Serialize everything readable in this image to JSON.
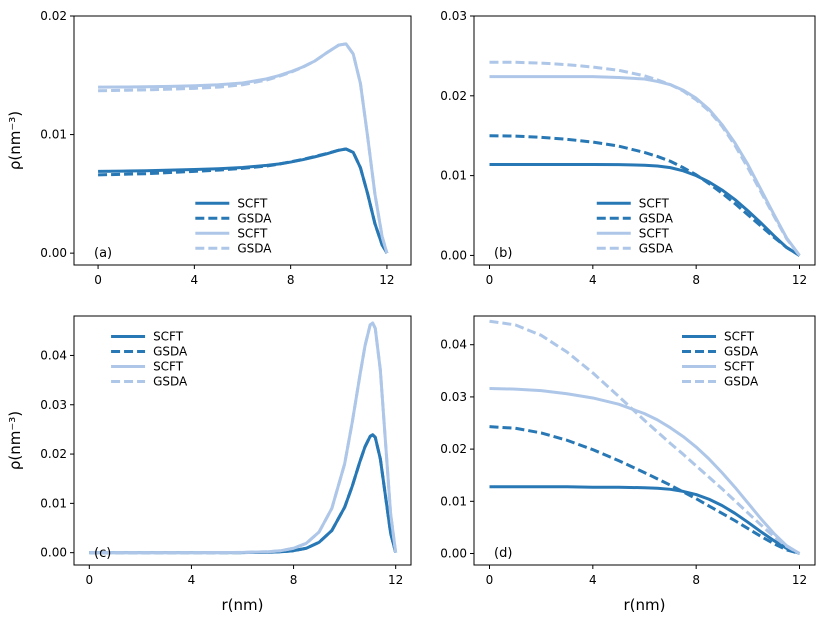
{
  "colors": {
    "dark": "#2878b5",
    "light": "#aec7e8"
  },
  "chart_data": [
    {
      "type": "line",
      "panel_label": "(a)",
      "xlabel": "",
      "ylabel": "ρ(nm⁻³)",
      "xlim": [
        -1,
        13
      ],
      "ylim": [
        -0.001,
        0.02
      ],
      "xticks": [
        0,
        4,
        8,
        12
      ],
      "xticklabels": [
        "0",
        "4",
        "8",
        "12"
      ],
      "yticks": [
        0,
        0.01,
        0.02
      ],
      "yticklabels": [
        "0.00",
        "0.01",
        "0.02"
      ],
      "legend": "lower-center",
      "series": [
        {
          "name": "SCFT",
          "shade": "dark",
          "style": "solid",
          "x": [
            0,
            1,
            2,
            3,
            4,
            5,
            6,
            7,
            7.5,
            8,
            8.5,
            9,
            9.5,
            10,
            10.3,
            10.6,
            10.9,
            11.2,
            11.5,
            11.8,
            12
          ],
          "y": [
            0.0069,
            0.00692,
            0.00695,
            0.007,
            0.00705,
            0.00712,
            0.00722,
            0.0074,
            0.00752,
            0.00768,
            0.00788,
            0.00812,
            0.00838,
            0.00868,
            0.00878,
            0.0085,
            0.0072,
            0.005,
            0.0025,
            0.0007,
            0.0
          ]
        },
        {
          "name": "GSDA",
          "shade": "dark",
          "style": "dashed",
          "x": [
            0,
            1,
            2,
            3,
            4,
            5,
            6,
            7,
            7.5,
            8,
            8.5,
            9,
            9.5,
            10,
            10.3,
            10.6,
            10.9,
            11.2,
            11.5,
            11.8,
            12
          ],
          "y": [
            0.0066,
            0.00665,
            0.0067,
            0.0068,
            0.0069,
            0.007,
            0.00715,
            0.00735,
            0.0075,
            0.0077,
            0.0079,
            0.00815,
            0.0084,
            0.00868,
            0.00878,
            0.0085,
            0.0072,
            0.005,
            0.0025,
            0.0007,
            0.0
          ]
        },
        {
          "name": "SCFT",
          "shade": "light",
          "style": "solid",
          "x": [
            0,
            1,
            2,
            3,
            4,
            5,
            6,
            7,
            7.5,
            8,
            8.5,
            9,
            9.5,
            10,
            10.3,
            10.6,
            10.9,
            11.2,
            11.5,
            11.8,
            12
          ],
          "y": [
            0.014,
            0.01401,
            0.01403,
            0.01406,
            0.01412,
            0.0142,
            0.01435,
            0.0147,
            0.01497,
            0.0153,
            0.0157,
            0.0162,
            0.0169,
            0.01755,
            0.01765,
            0.0168,
            0.0143,
            0.0098,
            0.005,
            0.0014,
            0.0
          ]
        },
        {
          "name": "GSDA",
          "shade": "light",
          "style": "dashed",
          "x": [
            0,
            1,
            2,
            3,
            4,
            5,
            6,
            7,
            7.5,
            8,
            8.5,
            9,
            9.5,
            10,
            10.3,
            10.6,
            10.9,
            11.2,
            11.5,
            11.8,
            12
          ],
          "y": [
            0.0137,
            0.01373,
            0.01377,
            0.01383,
            0.0139,
            0.014,
            0.0142,
            0.0146,
            0.0149,
            0.01525,
            0.01568,
            0.0162,
            0.0169,
            0.01755,
            0.01765,
            0.0168,
            0.0143,
            0.0098,
            0.005,
            0.0014,
            0.0
          ]
        }
      ]
    },
    {
      "type": "line",
      "panel_label": "(b)",
      "xlabel": "",
      "ylabel": "",
      "xlim": [
        -0.6,
        12.6
      ],
      "ylim": [
        -0.0012,
        0.03
      ],
      "xticks": [
        0,
        4,
        8,
        12
      ],
      "xticklabels": [
        "0",
        "4",
        "8",
        "12"
      ],
      "yticks": [
        0,
        0.01,
        0.02,
        0.03
      ],
      "yticklabels": [
        "0.00",
        "0.01",
        "0.02",
        "0.03"
      ],
      "legend": "lower-center",
      "series": [
        {
          "name": "SCFT",
          "shade": "dark",
          "style": "solid",
          "x": [
            0,
            1,
            2,
            3,
            4,
            5,
            6,
            6.5,
            7,
            7.5,
            8,
            8.5,
            9,
            9.5,
            10,
            10.5,
            11,
            11.5,
            12
          ],
          "y": [
            0.0114,
            0.0114,
            0.0114,
            0.0114,
            0.0114,
            0.01138,
            0.0113,
            0.0112,
            0.011,
            0.0106,
            0.01,
            0.0092,
            0.0082,
            0.007,
            0.0056,
            0.0041,
            0.0025,
            0.001,
            0.0
          ]
        },
        {
          "name": "GSDA",
          "shade": "dark",
          "style": "dashed",
          "x": [
            0,
            1,
            2,
            3,
            4,
            5,
            6,
            6.5,
            7,
            7.5,
            8,
            8.5,
            9,
            9.5,
            10,
            10.5,
            11,
            11.5,
            12
          ],
          "y": [
            0.015,
            0.01495,
            0.0148,
            0.01455,
            0.0142,
            0.0137,
            0.0129,
            0.0124,
            0.0118,
            0.011,
            0.0101,
            0.009,
            0.0078,
            0.0065,
            0.0051,
            0.0037,
            0.0023,
            0.001,
            0.0
          ]
        },
        {
          "name": "SCFT",
          "shade": "light",
          "style": "solid",
          "x": [
            0,
            1,
            2,
            3,
            4,
            5,
            6,
            6.5,
            7,
            7.5,
            8,
            8.5,
            9,
            9.5,
            10,
            10.5,
            11,
            11.5,
            12
          ],
          "y": [
            0.0224,
            0.0224,
            0.0224,
            0.0224,
            0.0224,
            0.0223,
            0.0221,
            0.0218,
            0.0214,
            0.0207,
            0.0197,
            0.0183,
            0.0164,
            0.0141,
            0.0114,
            0.0083,
            0.0052,
            0.0022,
            0.0
          ]
        },
        {
          "name": "GSDA",
          "shade": "light",
          "style": "dashed",
          "x": [
            0,
            1,
            2,
            3,
            4,
            5,
            6,
            6.5,
            7,
            7.5,
            8,
            8.5,
            9,
            9.5,
            10,
            10.5,
            11,
            11.5,
            12
          ],
          "y": [
            0.0242,
            0.0242,
            0.0241,
            0.0239,
            0.0236,
            0.0232,
            0.0225,
            0.022,
            0.0214,
            0.0206,
            0.0195,
            0.0181,
            0.0162,
            0.0138,
            0.011,
            0.008,
            0.005,
            0.0021,
            0.0
          ]
        }
      ]
    },
    {
      "type": "line",
      "panel_label": "(c)",
      "xlabel": "r(nm)",
      "ylabel": "ρ(nm⁻³)",
      "xlim": [
        -0.6,
        12.6
      ],
      "ylim": [
        -0.0025,
        0.048
      ],
      "xticks": [
        0,
        4,
        8,
        12
      ],
      "xticklabels": [
        "0",
        "4",
        "8",
        "12"
      ],
      "yticks": [
        0,
        0.01,
        0.02,
        0.03,
        0.04
      ],
      "yticklabels": [
        "0.00",
        "0.01",
        "0.02",
        "0.03",
        "0.04"
      ],
      "legend": "top-left",
      "series": [
        {
          "name": "SCFT",
          "shade": "dark",
          "style": "solid",
          "x": [
            0,
            2,
            4,
            6,
            7,
            7.5,
            8,
            8.5,
            9,
            9.5,
            10,
            10.3,
            10.6,
            10.8,
            11,
            11.1,
            11.2,
            11.4,
            11.6,
            11.8,
            12
          ],
          "y": [
            0,
            0,
            0,
            2e-05,
            8e-05,
            0.00018,
            0.0004,
            0.0009,
            0.0021,
            0.0045,
            0.0092,
            0.0135,
            0.0185,
            0.0215,
            0.0236,
            0.0239,
            0.0234,
            0.019,
            0.0115,
            0.004,
            0.0
          ]
        },
        {
          "name": "GSDA",
          "shade": "dark",
          "style": "dashed",
          "x": [
            0,
            2,
            4,
            6,
            7,
            7.5,
            8,
            8.5,
            9,
            9.5,
            10,
            10.3,
            10.6,
            10.8,
            11,
            11.1,
            11.2,
            11.4,
            11.6,
            11.8,
            12
          ],
          "y": [
            0,
            0,
            0,
            2e-05,
            8e-05,
            0.00018,
            0.0004,
            0.0009,
            0.0021,
            0.0045,
            0.0092,
            0.0135,
            0.0185,
            0.0215,
            0.0236,
            0.0239,
            0.0234,
            0.019,
            0.0115,
            0.004,
            0.0
          ]
        },
        {
          "name": "SCFT",
          "shade": "light",
          "style": "solid",
          "x": [
            0,
            2,
            4,
            6,
            7,
            7.5,
            8,
            8.5,
            9,
            9.5,
            10,
            10.3,
            10.6,
            10.8,
            11,
            11.1,
            11.2,
            11.4,
            11.6,
            11.8,
            12
          ],
          "y": [
            0,
            0,
            0,
            5e-05,
            0.0002,
            0.0004,
            0.0009,
            0.0019,
            0.0042,
            0.009,
            0.018,
            0.0265,
            0.036,
            0.042,
            0.0462,
            0.0466,
            0.0455,
            0.037,
            0.0225,
            0.008,
            0.0
          ]
        },
        {
          "name": "GSDA",
          "shade": "light",
          "style": "dashed",
          "x": [
            0,
            2,
            4,
            6,
            7,
            7.5,
            8,
            8.5,
            9,
            9.5,
            10,
            10.3,
            10.6,
            10.8,
            11,
            11.1,
            11.2,
            11.4,
            11.6,
            11.8,
            12
          ],
          "y": [
            0,
            0,
            0,
            5e-05,
            0.0002,
            0.0004,
            0.0009,
            0.0019,
            0.0042,
            0.009,
            0.018,
            0.0265,
            0.036,
            0.042,
            0.0462,
            0.0466,
            0.0455,
            0.037,
            0.0225,
            0.008,
            0.0
          ]
        }
      ]
    },
    {
      "type": "line",
      "panel_label": "(d)",
      "xlabel": "r(nm)",
      "ylabel": "",
      "xlim": [
        -0.6,
        12.6
      ],
      "ylim": [
        -0.0022,
        0.0455
      ],
      "xticks": [
        0,
        4,
        8,
        12
      ],
      "xticklabels": [
        "0",
        "4",
        "8",
        "12"
      ],
      "yticks": [
        0,
        0.01,
        0.02,
        0.03,
        0.04
      ],
      "yticklabels": [
        "0.00",
        "0.01",
        "0.02",
        "0.03",
        "0.04"
      ],
      "legend": "top-right",
      "series": [
        {
          "name": "SCFT",
          "shade": "dark",
          "style": "solid",
          "x": [
            0,
            1,
            2,
            3,
            4,
            5,
            6,
            6.5,
            7,
            7.5,
            8,
            8.5,
            9,
            9.5,
            10,
            10.5,
            11,
            11.5,
            12
          ],
          "y": [
            0.0128,
            0.0128,
            0.0128,
            0.0128,
            0.0127,
            0.0127,
            0.0126,
            0.0125,
            0.0123,
            0.0119,
            0.0113,
            0.0104,
            0.0092,
            0.0077,
            0.006,
            0.0042,
            0.0025,
            0.001,
            0.0
          ]
        },
        {
          "name": "GSDA",
          "shade": "dark",
          "style": "dashed",
          "x": [
            0,
            1,
            2,
            3,
            4,
            5,
            6,
            6.5,
            7,
            7.5,
            8,
            8.5,
            9,
            9.5,
            10,
            10.5,
            11,
            11.5,
            12
          ],
          "y": [
            0.0243,
            0.024,
            0.0231,
            0.0217,
            0.0199,
            0.0178,
            0.0155,
            0.0143,
            0.0131,
            0.0118,
            0.0105,
            0.0091,
            0.0077,
            0.0063,
            0.0048,
            0.0033,
            0.0019,
            0.0007,
            0.0
          ]
        },
        {
          "name": "SCFT",
          "shade": "light",
          "style": "solid",
          "x": [
            0,
            1,
            2,
            3,
            4,
            5,
            6,
            6.5,
            7,
            7.5,
            8,
            8.5,
            9,
            9.5,
            10,
            10.5,
            11,
            11.5,
            12
          ],
          "y": [
            0.0316,
            0.0315,
            0.0312,
            0.0306,
            0.0298,
            0.0286,
            0.0268,
            0.0256,
            0.0241,
            0.0224,
            0.0204,
            0.0181,
            0.0155,
            0.0127,
            0.0097,
            0.0067,
            0.0039,
            0.0015,
            0.0
          ]
        },
        {
          "name": "GSDA",
          "shade": "light",
          "style": "dashed",
          "x": [
            0,
            1,
            2,
            3,
            4,
            5,
            6,
            6.5,
            7,
            7.5,
            8,
            8.5,
            9,
            9.5,
            10,
            10.5,
            11,
            11.5,
            12
          ],
          "y": [
            0.0445,
            0.0438,
            0.0418,
            0.0386,
            0.0346,
            0.0301,
            0.0255,
            0.0233,
            0.0211,
            0.019,
            0.0168,
            0.0146,
            0.0124,
            0.0101,
            0.0078,
            0.0055,
            0.0033,
            0.0014,
            0.0
          ]
        }
      ]
    }
  ]
}
